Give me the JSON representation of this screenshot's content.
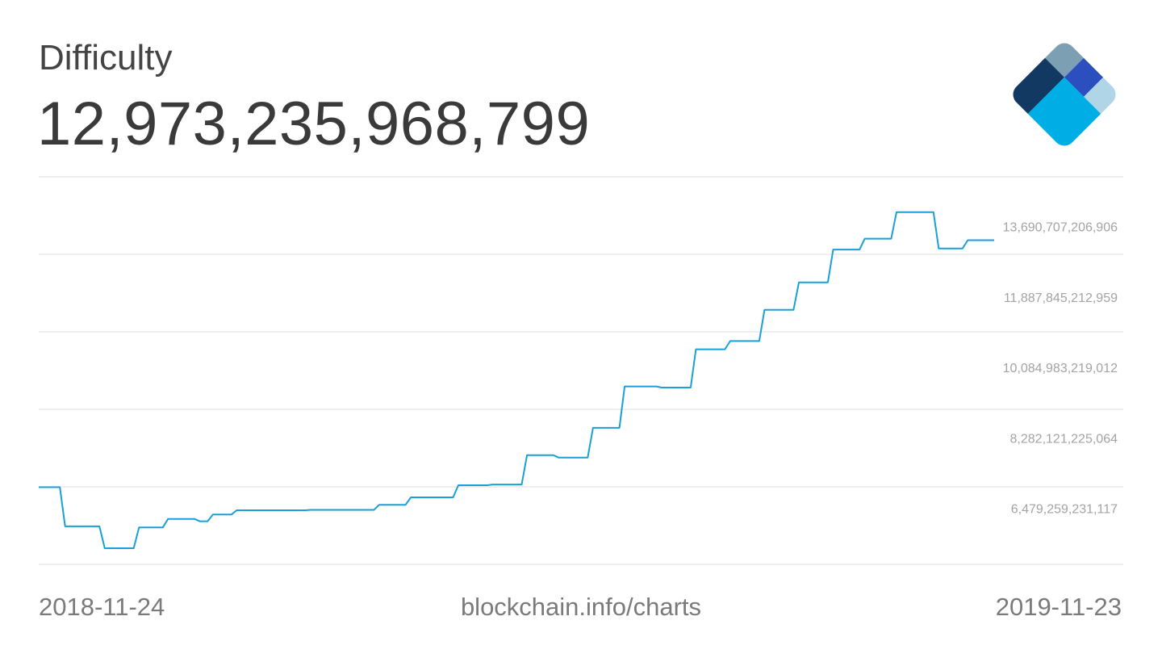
{
  "header": {
    "title": "Difficulty",
    "current_value": "12,973,235,968,799"
  },
  "footer": {
    "start_date": "2018-11-24",
    "source": "blockchain.info/charts",
    "end_date": "2019-11-23"
  },
  "logo": {
    "icon": "blockchain-diamond-logo-icon",
    "colors": [
      "#7c9fb3",
      "#123962",
      "#2b4fbf",
      "#00aee6",
      "#b0d5e6"
    ]
  },
  "chart_data": {
    "type": "line",
    "title": "Difficulty",
    "xlabel": "",
    "ylabel": "",
    "x_start": "2018-11-24",
    "x_end": "2019-11-23",
    "ylim": [
      4676397237170,
      14592138203880
    ],
    "y_ticks": [
      6479259231117,
      8282121225064,
      10084983219012,
      11887845212959,
      13690707206906
    ],
    "y_tick_labels": [
      "6,479,259,231,117",
      "8,282,121,225,064",
      "10,084,983,219,012",
      "11,887,845,212,959",
      "13,690,707,206,906"
    ],
    "line_color": "#1a9fd9",
    "grid": true,
    "series": [
      {
        "x": [
          "2018-11-24",
          "2018-12-02",
          "2018-12-04",
          "2018-12-17",
          "2018-12-19",
          "2018-12-30",
          "2019-01-01",
          "2019-01-10",
          "2019-01-12",
          "2019-01-22",
          "2019-01-24",
          "2019-01-27",
          "2019-01-29",
          "2019-02-05",
          "2019-02-07",
          "2019-02-19",
          "2019-02-21",
          "2019-03-05",
          "2019-03-07",
          "2019-03-19",
          "2019-03-21",
          "2019-03-31",
          "2019-04-02",
          "2019-04-12",
          "2019-04-14",
          "2019-04-17",
          "2019-04-19",
          "2019-04-30",
          "2019-05-02",
          "2019-05-13",
          "2019-05-15",
          "2019-05-26",
          "2019-05-28",
          "2019-06-07",
          "2019-06-09",
          "2019-06-20",
          "2019-06-22",
          "2019-07-02",
          "2019-07-04",
          "2019-07-16",
          "2019-07-18",
          "2019-07-29",
          "2019-07-31",
          "2019-08-11",
          "2019-08-13",
          "2019-08-24",
          "2019-08-26",
          "2019-09-06",
          "2019-09-08",
          "2019-09-19",
          "2019-09-21",
          "2019-10-01",
          "2019-10-03",
          "2019-10-13",
          "2019-10-15",
          "2019-10-29",
          "2019-10-31",
          "2019-11-09",
          "2019-11-11",
          "2019-11-21"
        ],
        "y": [
          6652000000000,
          6652000000000,
          5650000000000,
          5650000000000,
          5090000000000,
          5090000000000,
          5620000000000,
          5620000000000,
          5840000000000,
          5840000000000,
          5780000000000,
          5780000000000,
          5950000000000,
          5950000000000,
          6060000000000,
          6060000000000,
          6060000000000,
          6060000000000,
          6070000000000,
          6070000000000,
          6070000000000,
          6070000000000,
          6200000000000,
          6200000000000,
          6390000000000,
          6390000000000,
          6390000000000,
          6390000000000,
          6700000000000,
          6700000000000,
          6720000000000,
          6720000000000,
          7470000000000,
          7470000000000,
          7410000000000,
          7410000000000,
          8170000000000,
          8170000000000,
          9230000000000,
          9230000000000,
          9200000000000,
          9200000000000,
          10180000000000,
          10180000000000,
          10390000000000,
          10390000000000,
          11190000000000,
          11190000000000,
          11890000000000,
          11890000000000,
          12730000000000,
          12730000000000,
          13010000000000,
          13010000000000,
          13690000000000,
          13690000000000,
          12760000000000,
          12760000000000,
          12970000000000,
          12970000000000
        ]
      }
    ]
  }
}
